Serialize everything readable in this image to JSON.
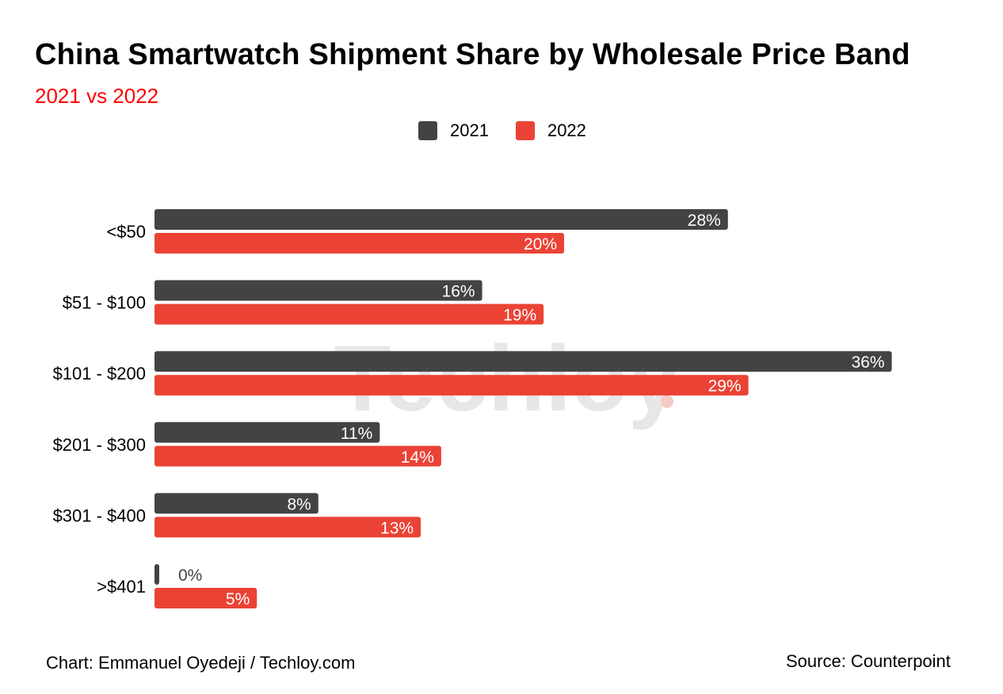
{
  "header": {
    "title": "China Smartwatch Shipment Share by Wholesale Price Band",
    "subtitle": "2021 vs 2022"
  },
  "watermark": "Techloy",
  "colors": {
    "series_2021": "#434343",
    "series_2022": "#ea4335",
    "subtitle": "#ff0000",
    "label_inside": "#ffffff",
    "label_outside": "#444444",
    "watermark": "#e7e7e7",
    "watermark_dot": "#f6c9c5"
  },
  "footer": {
    "credit": "Chart: Emmanuel Oyedeji / Techloy.com",
    "source": "Source: Counterpoint"
  },
  "chart_data": {
    "type": "bar",
    "orientation": "horizontal",
    "categories": [
      "<$50",
      "$51 - $100",
      "$101 - $200",
      "$201 - $300",
      "$301 - $400",
      ">$401"
    ],
    "series": [
      {
        "name": "2021",
        "values": [
          28,
          16,
          36,
          11,
          8,
          0
        ],
        "labels": [
          "28%",
          "16%",
          "36%",
          "11%",
          "8%",
          "0%"
        ]
      },
      {
        "name": "2022",
        "values": [
          20,
          19,
          29,
          14,
          13,
          5
        ],
        "labels": [
          "20%",
          "19%",
          "29%",
          "14%",
          "13%",
          "5%"
        ]
      }
    ],
    "xlim": [
      0,
      36
    ],
    "unit": "%",
    "legend": "top-center",
    "grid": false,
    "data_labels": true
  }
}
